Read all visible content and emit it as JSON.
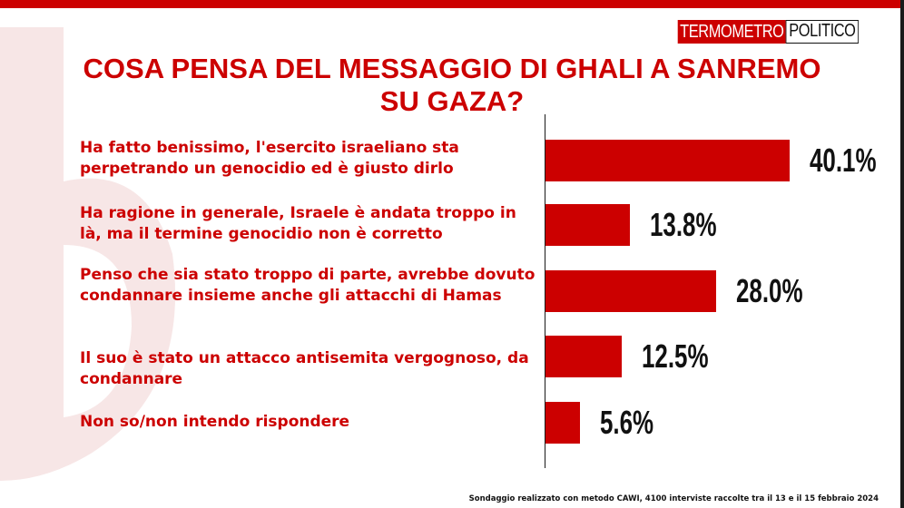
{
  "header": {
    "logo_part1": "TERMOMETRO",
    "logo_part2": "POLITICO"
  },
  "title_line1": "COSA PENSA DEL MESSAGGIO DI GHALI A SANREMO",
  "title_line2": "SU GAZA?",
  "footnote": "Sondaggio realizzato con metodo CAWI, 4100 interviste raccolte tra il 13 e il 15 febbraio 2024",
  "colors": {
    "accent": "#cc0000",
    "text": "#111111"
  },
  "chart_data": {
    "type": "bar",
    "orientation": "horizontal",
    "categories": [
      "Ha fatto benissimo, l'esercito israeliano sta perpetrando un genocidio ed è giusto dirlo",
      "Ha ragione in generale, Israele è andata troppo in là, ma il termine genocidio non è corretto",
      "Penso che sia stato troppo di parte, avrebbe dovuto condannare insieme anche gli attacchi di Hamas",
      "Il suo è stato un attacco antisemita vergognoso, da condannare",
      "Non so/non intendo rispondere"
    ],
    "values": [
      40.1,
      13.8,
      28.0,
      12.5,
      5.6
    ],
    "value_labels": [
      "40.1%",
      "13.8%",
      "28.0%",
      "12.5%",
      "5.6%"
    ],
    "unit": "%",
    "grid": false,
    "legend": "none"
  }
}
